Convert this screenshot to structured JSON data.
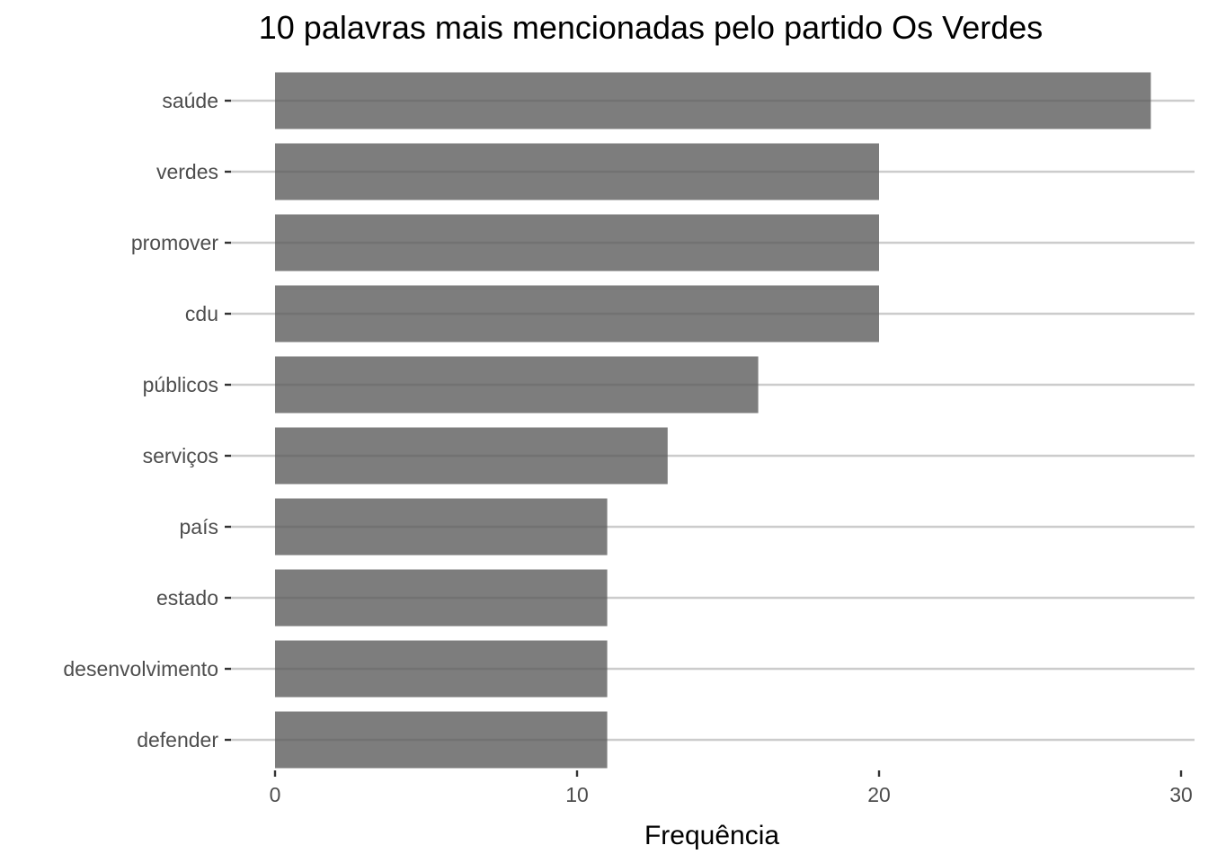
{
  "chart_data": {
    "type": "bar",
    "orientation": "horizontal",
    "title": "10 palavras mais mencionadas pelo partido Os Verdes",
    "xlabel": "Frequência",
    "ylabel": "",
    "categories": [
      "saúde",
      "verdes",
      "promover",
      "cdu",
      "públicos",
      "serviços",
      "país",
      "estado",
      "desenvolvimento",
      "defender"
    ],
    "values": [
      29,
      20,
      20,
      20,
      16,
      13,
      11,
      11,
      11,
      11
    ],
    "xlim": [
      0,
      30
    ],
    "x_ticks": [
      "0",
      "10",
      "20",
      "30"
    ],
    "grid": "horizontal major only",
    "bar_color": "#595959"
  }
}
